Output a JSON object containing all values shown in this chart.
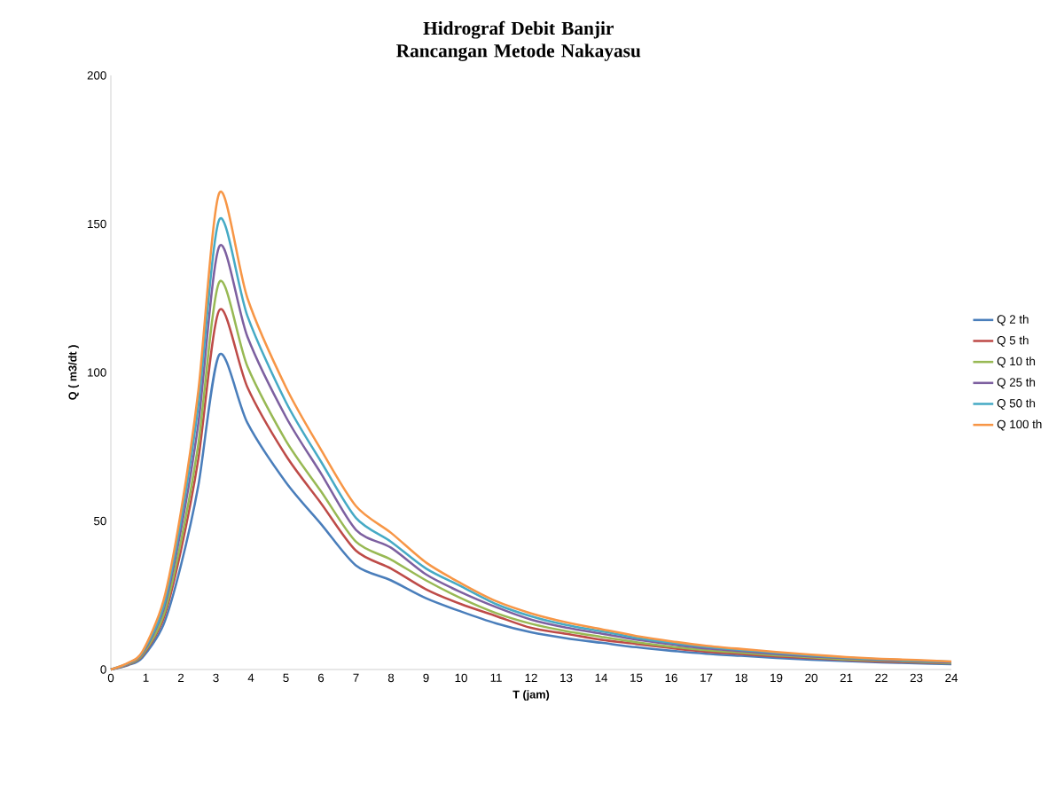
{
  "chart_data": {
    "type": "line",
    "title": "Hidrograf Debit Banjir Rancangan Metode Nakayasu",
    "xlabel": "T (jam)",
    "ylabel": "Q ( m3/dt )",
    "x": [
      0,
      0.5,
      0.9,
      1.5,
      2,
      2.5,
      3.1,
      3.9,
      5,
      6,
      7,
      8,
      9,
      10,
      11,
      12,
      13,
      14,
      15,
      16,
      17,
      18,
      19,
      20,
      21,
      22,
      23,
      24
    ],
    "series": [
      {
        "name": "Q 2 th",
        "color": "#4a7ebb",
        "values": [
          0,
          1.5,
          4,
          15,
          35,
          62,
          106,
          83,
          63,
          49,
          35,
          30,
          24,
          19.5,
          15.5,
          12.5,
          10.5,
          9,
          7.5,
          6.3,
          5.3,
          4.6,
          3.9,
          3.3,
          2.8,
          2.4,
          2.1,
          1.8
        ]
      },
      {
        "name": "Q 5 th",
        "color": "#be4b48",
        "values": [
          0,
          1.7,
          4.6,
          17,
          40,
          71,
          121,
          95,
          72,
          56,
          40,
          34,
          27,
          22,
          18,
          14,
          12,
          10,
          8.6,
          7.2,
          6,
          5.2,
          4.4,
          3.8,
          3.2,
          2.7,
          2.4,
          2.1
        ]
      },
      {
        "name": "Q 10 th",
        "color": "#98b954",
        "values": [
          0,
          1.8,
          4.9,
          18,
          43,
          76,
          130.5,
          102,
          77,
          60,
          43,
          37,
          30,
          24,
          19,
          15.4,
          12.9,
          11,
          9.2,
          7.7,
          6.5,
          5.7,
          4.8,
          4.1,
          3.4,
          3,
          2.6,
          2.2
        ]
      },
      {
        "name": "Q 25 th",
        "color": "#7d60a0",
        "values": [
          0,
          2,
          5.4,
          20,
          47,
          83,
          142.5,
          112,
          85,
          66,
          47,
          41,
          32,
          26,
          21,
          16.8,
          14.1,
          12.1,
          10.1,
          8.5,
          7.1,
          6.2,
          5.2,
          4.4,
          3.8,
          3.2,
          2.8,
          2.4
        ]
      },
      {
        "name": "Q 50 th",
        "color": "#46aac5",
        "values": [
          0,
          2.1,
          5.7,
          21,
          50,
          89,
          151.5,
          119,
          90,
          70,
          51,
          43,
          34,
          28,
          22,
          17.9,
          15,
          12.9,
          10.7,
          9,
          7.6,
          6.6,
          5.6,
          4.7,
          4,
          3.4,
          3,
          2.6
        ]
      },
      {
        "name": "Q 100 th",
        "color": "#f79646",
        "values": [
          0,
          2.3,
          6,
          23,
          53,
          94,
          160.5,
          125,
          95,
          74,
          55,
          46,
          36,
          29,
          23,
          18.9,
          15.9,
          13.6,
          11.3,
          9.5,
          8,
          6.9,
          5.9,
          5,
          4.2,
          3.6,
          3.2,
          2.7
        ]
      }
    ],
    "xlim": [
      0,
      24
    ],
    "xticks": [
      0,
      1,
      2,
      3,
      4,
      5,
      6,
      7,
      8,
      9,
      10,
      11,
      12,
      13,
      14,
      15,
      16,
      17,
      18,
      19,
      20,
      21,
      22,
      23,
      24
    ],
    "ylim": [
      0,
      200
    ],
    "yticks": [
      0,
      50,
      100,
      150,
      200
    ],
    "grid": false,
    "legend": "right",
    "marker": "none",
    "line_style": "solid"
  }
}
